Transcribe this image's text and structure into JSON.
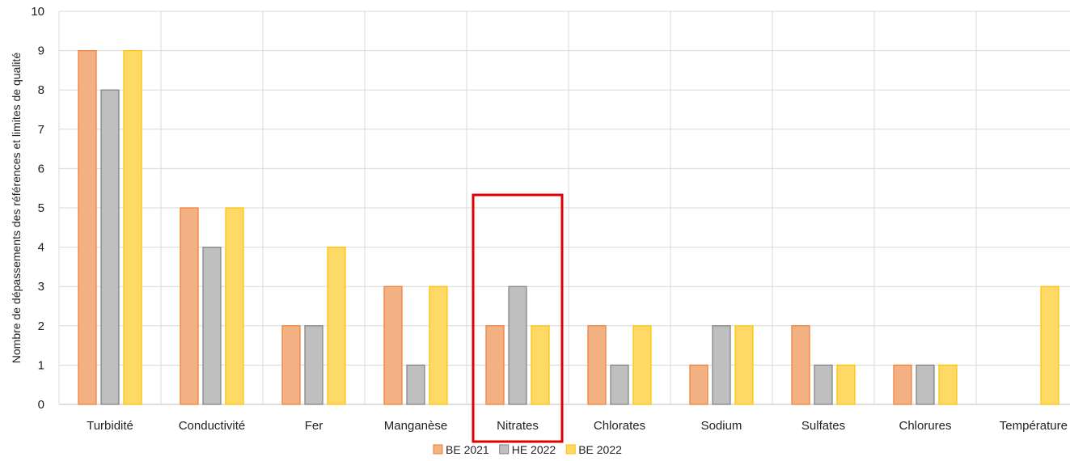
{
  "chart_data": {
    "type": "bar",
    "categories": [
      "Turbidité",
      "Conductivité",
      "Fer",
      "Manganèse",
      "Nitrates",
      "Chlorates",
      "Sodium",
      "Sulfates",
      "Chlorures",
      "Température"
    ],
    "series": [
      {
        "name": "BE 2021",
        "color": "#F4B183",
        "stroke": "#ED7D31",
        "values": [
          9,
          5,
          2,
          3,
          2,
          2,
          1,
          2,
          1,
          0
        ]
      },
      {
        "name": "HE 2022",
        "color": "#BFBFBF",
        "stroke": "#7F7F7F",
        "values": [
          8,
          4,
          2,
          1,
          3,
          1,
          2,
          1,
          1,
          0
        ]
      },
      {
        "name": "BE 2022",
        "color": "#FFD966",
        "stroke": "#FFC000",
        "values": [
          9,
          5,
          4,
          3,
          2,
          2,
          2,
          1,
          1,
          3
        ]
      }
    ],
    "ylabel": "Nombre de dépassements des références et limites de qualité",
    "xlabel": "",
    "ylim": [
      0,
      10
    ],
    "yticks": [
      0,
      1,
      2,
      3,
      4,
      5,
      6,
      7,
      8,
      9,
      10
    ],
    "grid": true,
    "legend_position": "bottom",
    "highlight": {
      "category": "Nitrates",
      "color": "#E00000"
    }
  }
}
